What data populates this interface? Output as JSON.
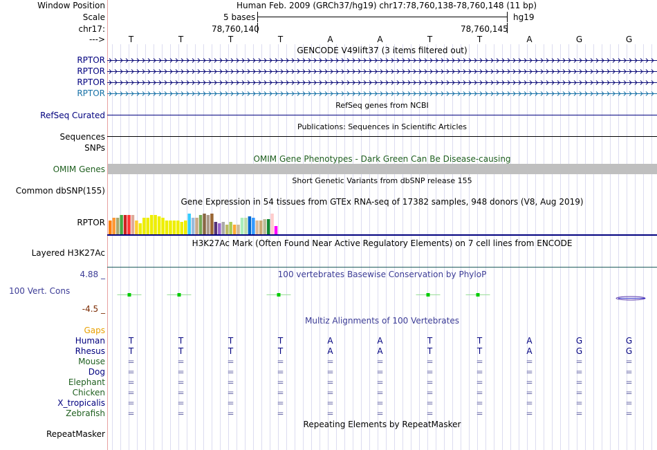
{
  "header": {
    "window_position_label": "Window Position",
    "window_position_value": "Human Feb. 2009 (GRCh37/hg19)   chr17:78,760,138-78,760,148 (11 bp)",
    "scale_label": "Scale",
    "scale_value": "5 bases",
    "scale_assembly": "hg19",
    "chrom_label": "chr17:",
    "coord_left": "78,760,140",
    "coord_right": "78,760,145",
    "strand_label": "--->",
    "bases": [
      "T",
      "T",
      "T",
      "T",
      "A",
      "A",
      "T",
      "T",
      "A",
      "G",
      "G"
    ]
  },
  "gencode": {
    "title": "GENCODE V49lift37 (3 items filtered out)",
    "labels": [
      "RPTOR",
      "RPTOR",
      "RPTOR",
      "RPTOR"
    ]
  },
  "refseq": {
    "label": "RefSeq Curated",
    "title": "RefSeq genes from NCBI"
  },
  "publications": {
    "label": "Sequences",
    "title": "Publications: Sequences in Scientific Articles"
  },
  "snps": {
    "label": "SNPs"
  },
  "omim": {
    "label": "OMIM Genes",
    "title": "OMIM Gene Phenotypes - Dark Green Can Be Disease-causing"
  },
  "dbsnp": {
    "label": "Common dbSNP(155)",
    "title": "Short Genetic Variants from dbSNP release 155"
  },
  "gtex": {
    "label": "RPTOR",
    "title": "Gene Expression in 54 tissues from GTEx RNA-seq of 17382 samples, 948 donors (V8, Aug 2019)"
  },
  "h3k27ac": {
    "label": "Layered H3K27Ac",
    "title": "H3K27Ac Mark (Often Found Near Active Regulatory Elements) on 7 cell lines from ENCODE"
  },
  "phylop": {
    "max_label": "4.88 _",
    "label": "100 Vert. Cons",
    "min_label": "-4.5 _",
    "title": "100 vertebrates Basewise Conservation by PhyloP"
  },
  "multiz": {
    "title": "Multiz Alignments of 100 Vertebrates",
    "gaps_label": "Gaps",
    "species": [
      {
        "name": "Human",
        "seq": [
          "T",
          "T",
          "T",
          "T",
          "A",
          "A",
          "T",
          "T",
          "A",
          "G",
          "G"
        ]
      },
      {
        "name": "Rhesus",
        "seq": [
          "T",
          "T",
          "T",
          "T",
          "A",
          "A",
          "T",
          "T",
          "A",
          "G",
          "G"
        ]
      },
      {
        "name": "Mouse",
        "seq": [
          "=",
          "=",
          "=",
          "=",
          "=",
          "=",
          "=",
          "=",
          "=",
          "=",
          "="
        ]
      },
      {
        "name": "Dog",
        "seq": [
          "=",
          "=",
          "=",
          "=",
          "=",
          "=",
          "=",
          "=",
          "=",
          "=",
          "="
        ]
      },
      {
        "name": "Elephant",
        "seq": [
          "=",
          "=",
          "=",
          "=",
          "=",
          "=",
          "=",
          "=",
          "=",
          "=",
          "="
        ]
      },
      {
        "name": "Chicken",
        "seq": [
          "=",
          "=",
          "=",
          "=",
          "=",
          "=",
          "=",
          "=",
          "=",
          "=",
          "="
        ]
      },
      {
        "name": "X_tropicalis",
        "seq": [
          "=",
          "=",
          "=",
          "=",
          "=",
          "=",
          "=",
          "=",
          "=",
          "=",
          "="
        ]
      },
      {
        "name": "Zebrafish",
        "seq": [
          "=",
          "=",
          "=",
          "=",
          "=",
          "=",
          "=",
          "=",
          "=",
          "=",
          "="
        ]
      }
    ]
  },
  "repeatmasker": {
    "label": "RepeatMasker",
    "title": "Repeating Elements by RepeatMasker"
  },
  "colors": {
    "navy": "#00007f",
    "gencode_dark": "#0c0c78",
    "gencode_light": "#1570a6",
    "omim_gray": "#bfbfbf",
    "green_label": "#1f5f1f",
    "gaps_orange": "#e8a000",
    "phylop_max": "#333399",
    "phylop_min": "#7a2a00",
    "conservation_green": "#00cc00"
  },
  "gtex_colors": [
    "#ff7f0e",
    "#ff9933",
    "#a8a870",
    "#44aa44",
    "#cc2222",
    "#ff3333",
    "#ddaa99",
    "#ffcc33",
    "#eeee00",
    "#eeee00",
    "#eeee00",
    "#eeee00",
    "#eeee00",
    "#eeee00",
    "#eeee00",
    "#eeee00",
    "#eeee00",
    "#eeee00",
    "#eeee00",
    "#eeee00",
    "#eeee00",
    "#33ccff",
    "#99bbdd",
    "#ccaa88",
    "#77aa55",
    "#886644",
    "#aa9988",
    "#996633",
    "#553377",
    "#9966cc",
    "#aaaaaa",
    "#bbbb66",
    "#aacc55",
    "#ffaa33",
    "#ccbb99",
    "#aaeebb",
    "#bbddaa",
    "#0066cc",
    "#3399ff",
    "#ddbb99",
    "#ccaa77",
    "#bbbb99",
    "#118833",
    "#ffcccc",
    "#ff00ff"
  ],
  "gtex_values": [
    0.5,
    0.6,
    0.6,
    0.7,
    0.7,
    0.7,
    0.7,
    0.5,
    0.4,
    0.6,
    0.6,
    0.7,
    0.7,
    0.65,
    0.6,
    0.5,
    0.5,
    0.5,
    0.5,
    0.45,
    0.5,
    0.75,
    0.6,
    0.6,
    0.7,
    0.75,
    0.7,
    0.75,
    0.45,
    0.4,
    0.45,
    0.35,
    0.45,
    0.35,
    0.35,
    0.6,
    0.6,
    0.65,
    0.6,
    0.5,
    0.5,
    0.55,
    0.55,
    0.75,
    0.3
  ]
}
